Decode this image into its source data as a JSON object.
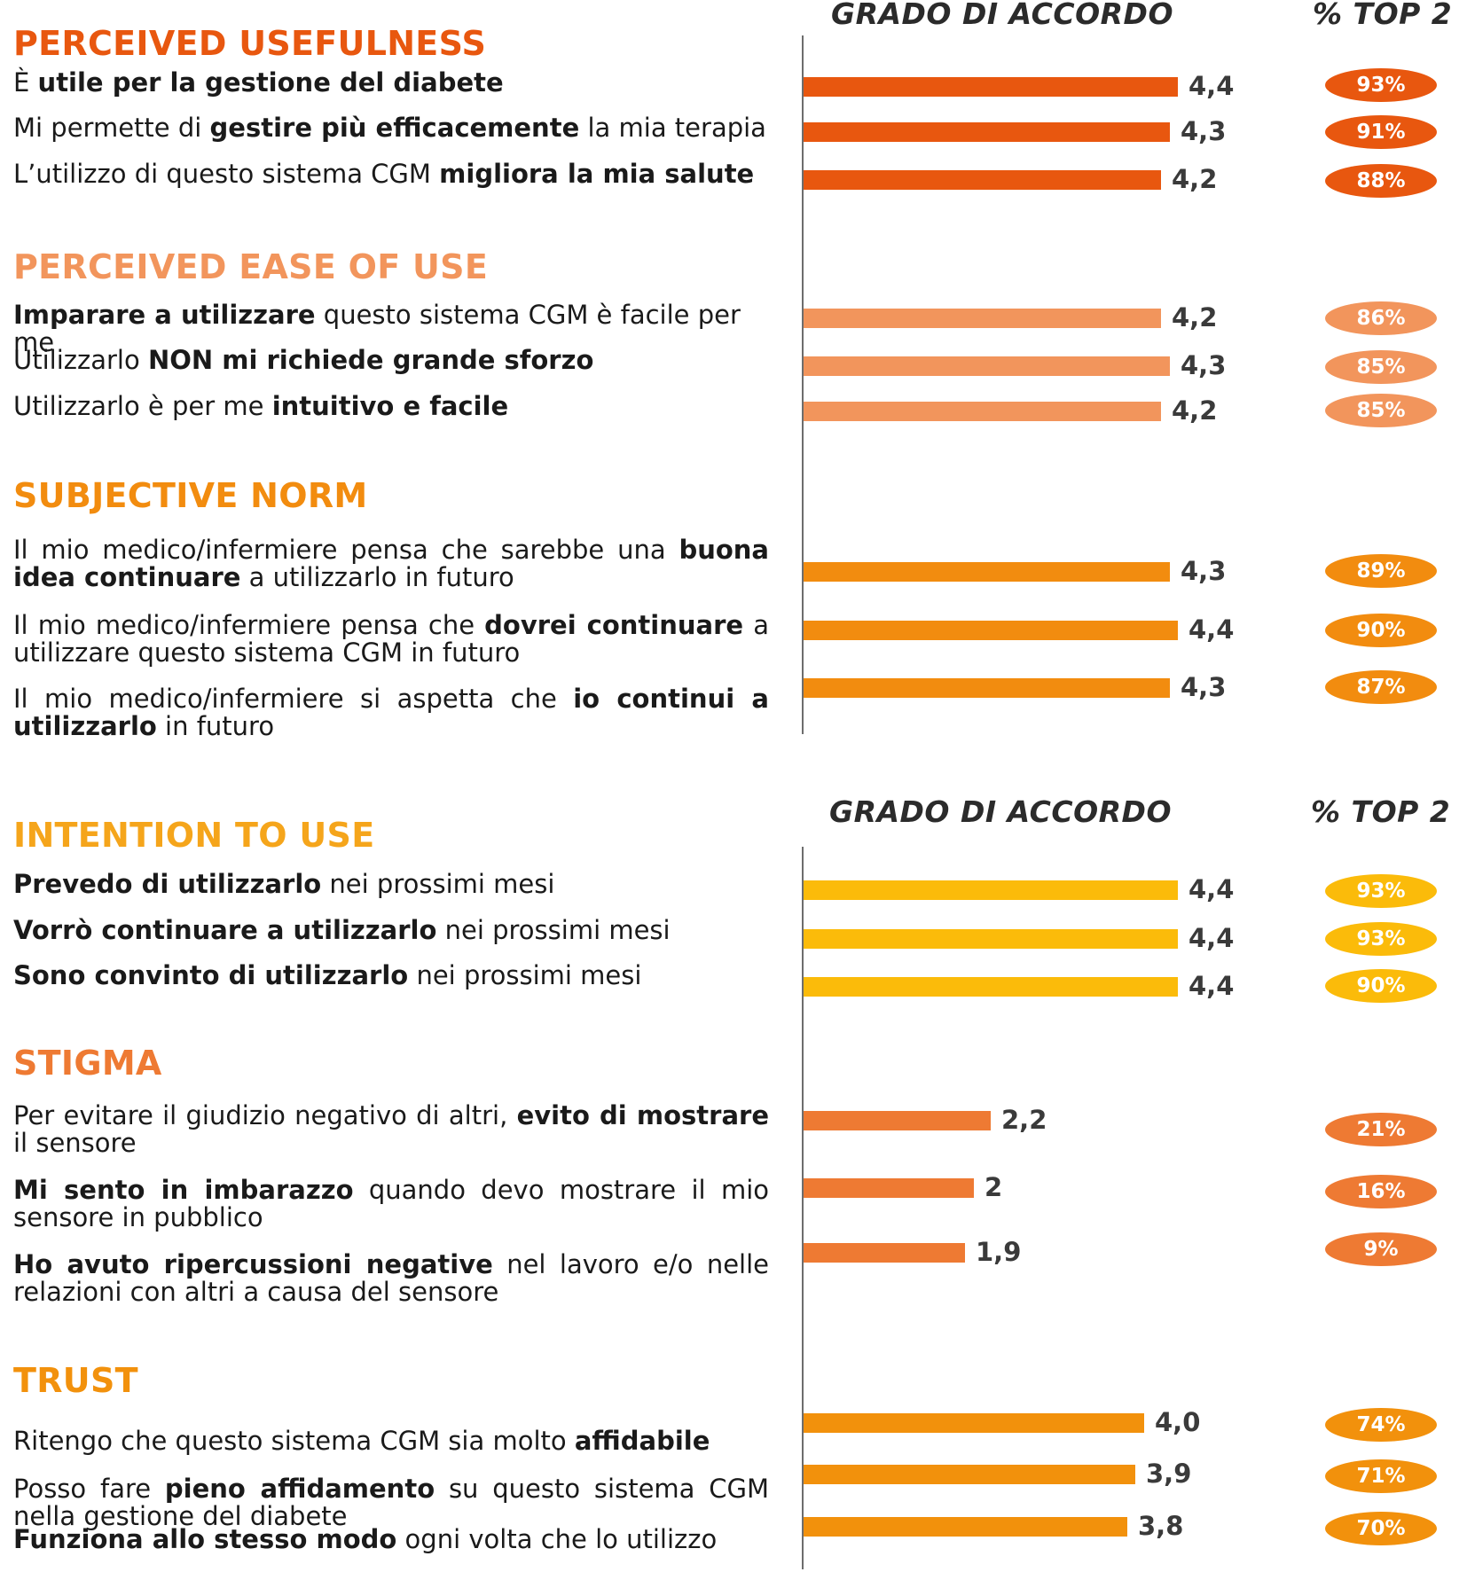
{
  "column_headers": {
    "agreement": "GRADO  DI ACCORDO",
    "top2": "% TOP 2"
  },
  "colors": {
    "usefulness": "#e8570f",
    "ease": "#f2955c",
    "norm": "#f28c0f",
    "intention": "#fbbb0a",
    "stigma": "#ee7a33",
    "trust": "#f2910c",
    "title_usefulness": "#e8570f",
    "title_ease": "#f2955c",
    "title_norm": "#f28c0f",
    "title_intention": "#f5a51b",
    "title_stigma": "#ee7a33",
    "title_trust": "#f2910c"
  },
  "sections": [
    {
      "title": "PERCEIVED USEFULNESS",
      "items": [
        {
          "segments": [
            [
              "È ",
              false
            ],
            [
              "utile per la gestione del diabete",
              true
            ]
          ],
          "value": "4,4",
          "top2": "93%"
        },
        {
          "segments": [
            [
              "Mi permette di ",
              false
            ],
            [
              "gestire più efficacemente",
              true
            ],
            [
              " la mia terapia",
              false
            ]
          ],
          "value": "4,3",
          "top2": "91%"
        },
        {
          "segments": [
            [
              "L’utilizzo di questo sistema CGM ",
              false
            ],
            [
              "migliora la mia salute",
              true
            ]
          ],
          "value": "4,2",
          "top2": "88%"
        }
      ]
    },
    {
      "title": "PERCEIVED EASE OF USE",
      "items": [
        {
          "segments": [
            [
              "Imparare a utilizzare",
              true
            ],
            [
              " questo sistema CGM è facile per me",
              false
            ]
          ],
          "value": "4,2",
          "top2": "86%"
        },
        {
          "segments": [
            [
              "Utilizzarlo ",
              false
            ],
            [
              "NON mi richiede grande sforzo",
              true
            ]
          ],
          "value": "4,3",
          "top2": "85%"
        },
        {
          "segments": [
            [
              "Utilizzarlo è per me ",
              false
            ],
            [
              "intuitivo e facile",
              true
            ]
          ],
          "value": "4,2",
          "top2": "85%"
        }
      ]
    },
    {
      "title": "SUBJECTIVE NORM",
      "items": [
        {
          "segments": [
            [
              "Il mio medico/infermiere pensa che sarebbe una ",
              false
            ],
            [
              "buona idea continuare",
              true
            ],
            [
              "  a utilizzarlo in futuro",
              false
            ]
          ],
          "value": "4,3",
          "top2": "89%"
        },
        {
          "segments": [
            [
              "Il mio medico/infermiere pensa che ",
              false
            ],
            [
              "dovrei continuare",
              true
            ],
            [
              " a utilizzare questo sistema CGM in futuro",
              false
            ]
          ],
          "value": "4,4",
          "top2": "90%"
        },
        {
          "segments": [
            [
              "Il mio medico/infermiere si aspetta che ",
              false
            ],
            [
              "io continui a utilizzarlo",
              true
            ],
            [
              " in futuro",
              false
            ]
          ],
          "value": "4,3",
          "top2": "87%"
        }
      ]
    },
    {
      "title": "INTENTION TO USE",
      "items": [
        {
          "segments": [
            [
              "Prevedo di utilizzarlo",
              true
            ],
            [
              " nei prossimi mesi",
              false
            ]
          ],
          "value": "4,4",
          "top2": "93%"
        },
        {
          "segments": [
            [
              "Vorrò continuare a utilizzarlo",
              true
            ],
            [
              " nei prossimi mesi",
              false
            ]
          ],
          "value": "4,4",
          "top2": "93%"
        },
        {
          "segments": [
            [
              "Sono convinto di utilizzarlo",
              true
            ],
            [
              " nei prossimi mesi",
              false
            ]
          ],
          "value": "4,4",
          "top2": "90%"
        }
      ]
    },
    {
      "title": "STIGMA",
      "items": [
        {
          "segments": [
            [
              "Per evitare il giudizio negativo di altri, ",
              false
            ],
            [
              "evito di mostrare",
              true
            ],
            [
              " il sensore",
              false
            ]
          ],
          "value": "2,2",
          "top2": "21%"
        },
        {
          "segments": [
            [
              "Mi sento in imbarazzo",
              true
            ],
            [
              " quando devo mostrare il mio sensore in pubblico",
              false
            ]
          ],
          "value": "2",
          "top2": "16%"
        },
        {
          "segments": [
            [
              "Ho avuto ripercussioni negative",
              true
            ],
            [
              " nel lavoro e/o nelle relazioni con altri a causa del sensore",
              false
            ]
          ],
          "value": "1,9",
          "top2": "9%"
        }
      ]
    },
    {
      "title": "TRUST",
      "items": [
        {
          "segments": [
            [
              "Ritengo che questo sistema CGM sia molto ",
              false
            ],
            [
              "affidabile",
              true
            ]
          ],
          "value": "4,0",
          "top2": "74%"
        },
        {
          "segments": [
            [
              "Posso fare ",
              false
            ],
            [
              "pieno affidamento",
              true
            ],
            [
              " su questo sistema CGM nella gestione del diabete",
              false
            ]
          ],
          "value": "3,9",
          "top2": "71%"
        },
        {
          "segments": [
            [
              "Funziona allo stesso modo",
              true
            ],
            [
              " ogni volta che lo utilizzo",
              false
            ]
          ],
          "value": "3,8",
          "top2": "70%"
        }
      ]
    }
  ],
  "chart_data": {
    "type": "bar",
    "orientation": "horizontal",
    "xlim": [
      0,
      5
    ],
    "grid": false,
    "legend": "none",
    "series": [
      {
        "name": "GRADO  DI ACCORDO",
        "values": [
          4.4,
          4.3,
          4.2,
          4.2,
          4.3,
          4.2,
          4.3,
          4.4,
          4.3,
          4.4,
          4.4,
          4.4,
          2.2,
          2.0,
          1.9,
          4.0,
          3.9,
          3.8
        ]
      },
      {
        "name": "% TOP 2",
        "values": [
          93,
          91,
          88,
          86,
          85,
          85,
          89,
          90,
          87,
          93,
          93,
          90,
          21,
          16,
          9,
          74,
          71,
          70
        ]
      }
    ]
  }
}
